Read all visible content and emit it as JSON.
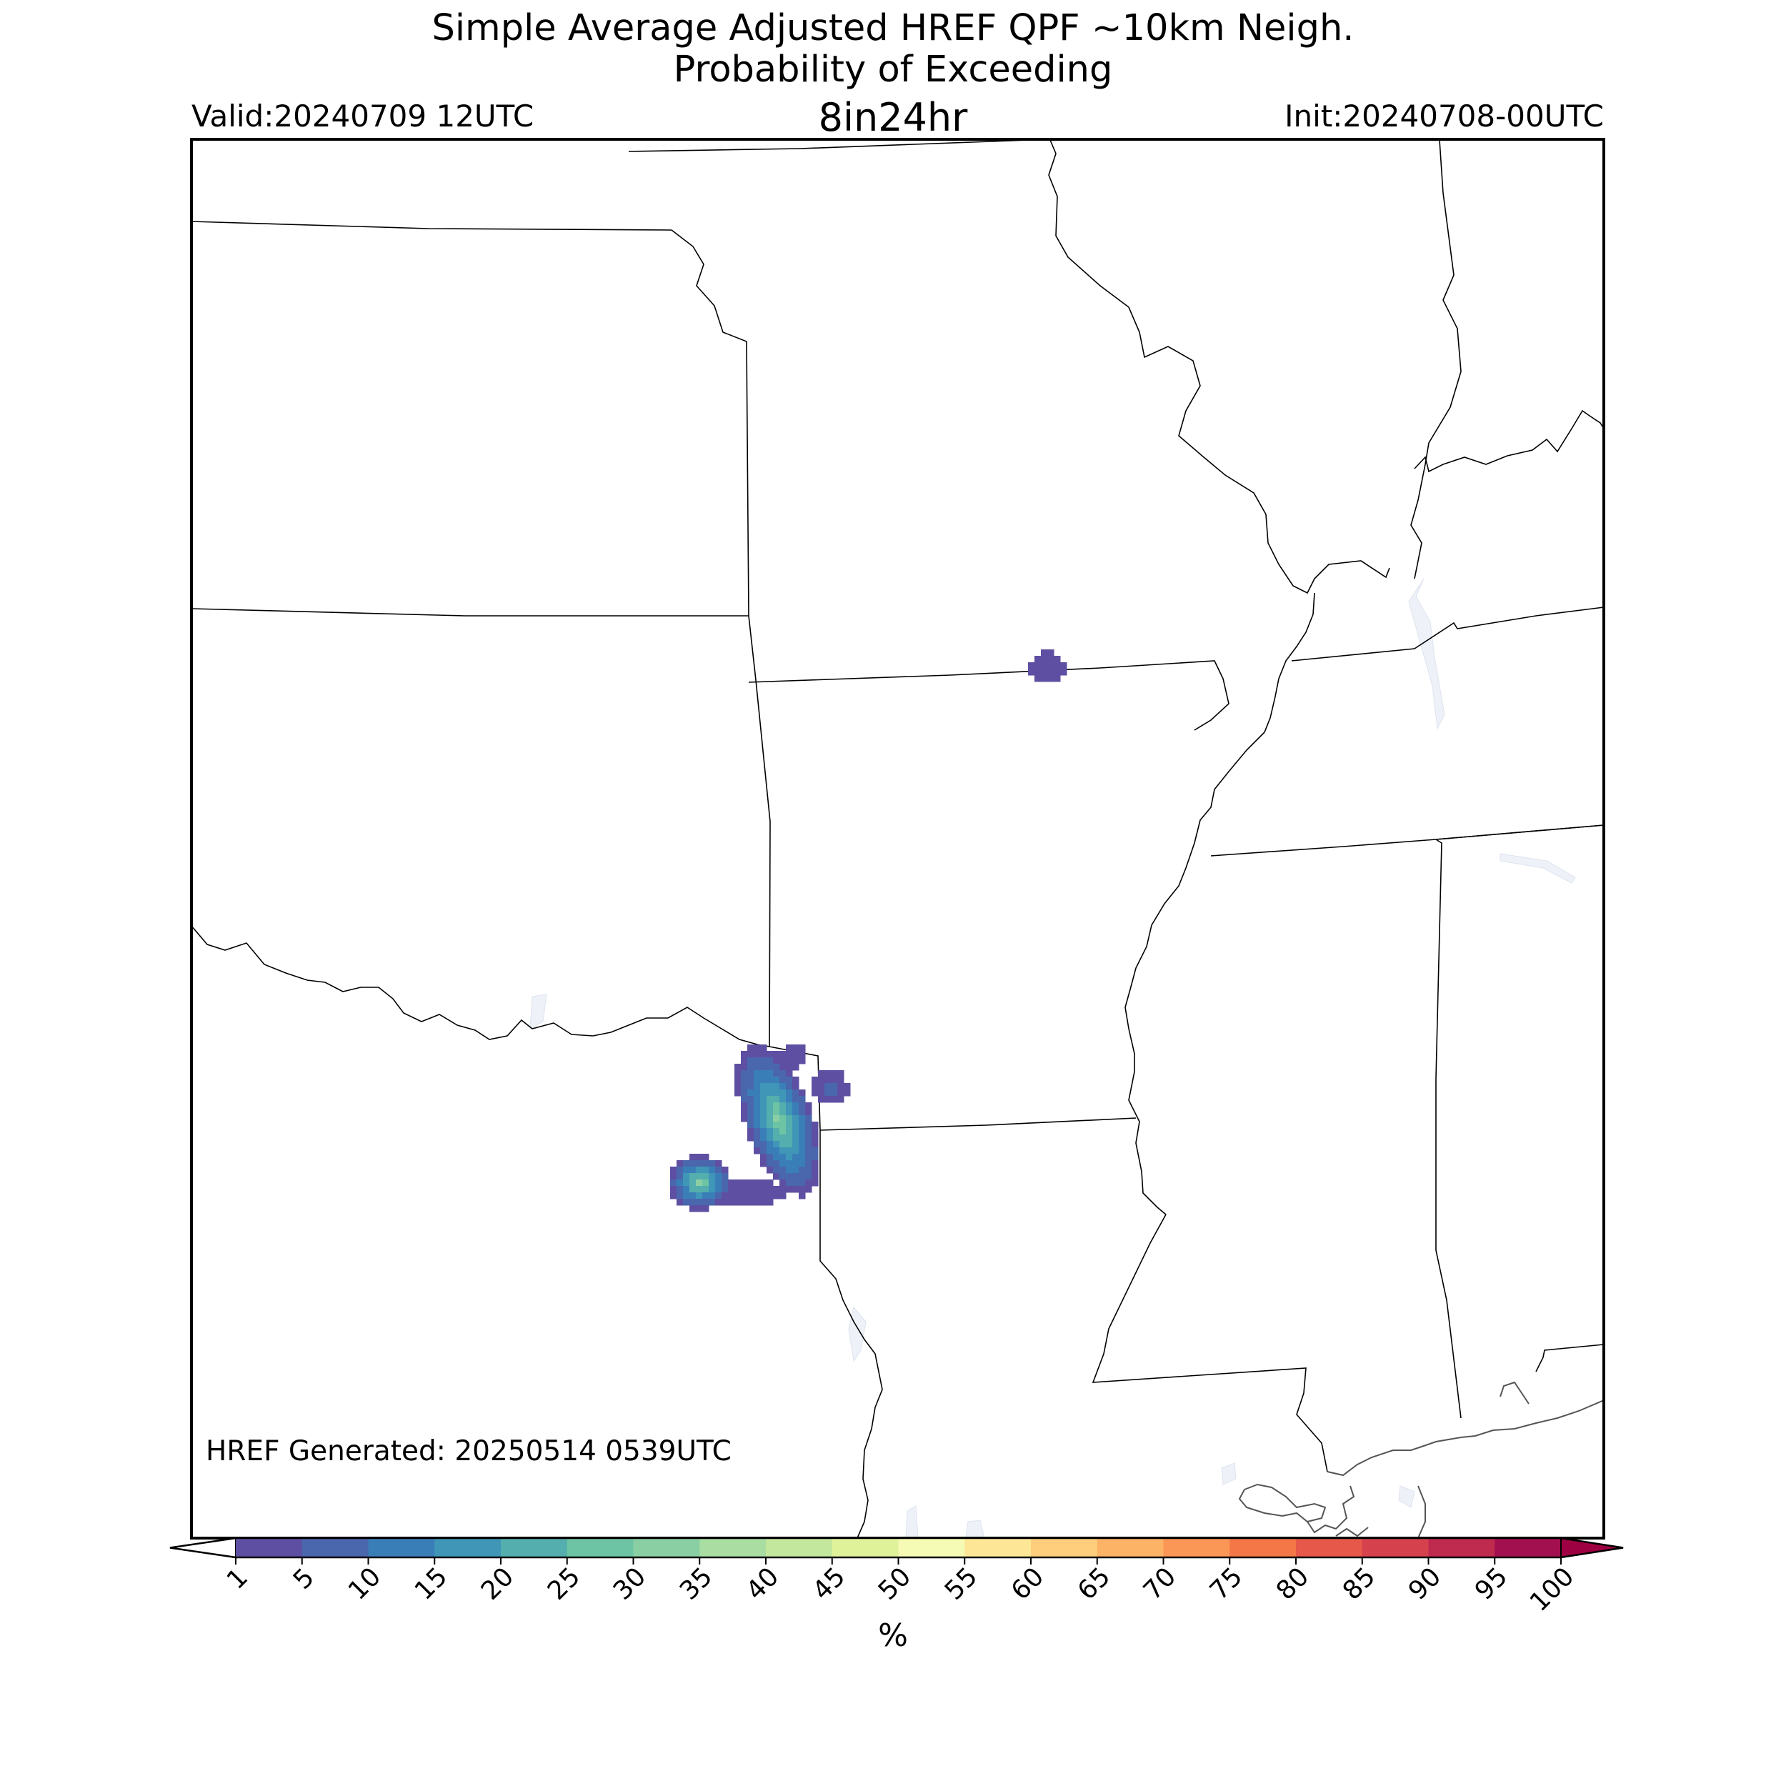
{
  "title": {
    "line1": "Simple Average Adjusted HREF QPF ~10km Neigh.",
    "line2": "Probability of Exceeding",
    "line3": "8in24hr"
  },
  "valid": "Valid:20240709 12UTC",
  "init": "Init:20240708-00UTC",
  "generated": "HREF Generated: 20250514 0539UTC",
  "colorbar": {
    "unit": "%",
    "levels": [
      "1",
      "5",
      "10",
      "15",
      "20",
      "25",
      "30",
      "35",
      "40",
      "45",
      "50",
      "55",
      "60",
      "65",
      "70",
      "75",
      "80",
      "85",
      "90",
      "95",
      "100"
    ],
    "colors": [
      "#5e4fa2",
      "#4a67ad",
      "#3a7eb8",
      "#3f96b7",
      "#54aead",
      "#6cc4a4",
      "#8acfa4",
      "#a9dda2",
      "#c4e79e",
      "#dff29a",
      "#f5fab4",
      "#fde797",
      "#fece7c",
      "#fdb366",
      "#fa9656",
      "#f47748",
      "#e5584a",
      "#d6414e",
      "#bf2a4f",
      "#a2104f",
      "#9e0142"
    ],
    "under_color": "#ffffff",
    "over_color": "#9e0142"
  },
  "map": {
    "boundary_color": "#000000",
    "coast_color": "#555555",
    "water_color": "#eef2f8"
  }
}
